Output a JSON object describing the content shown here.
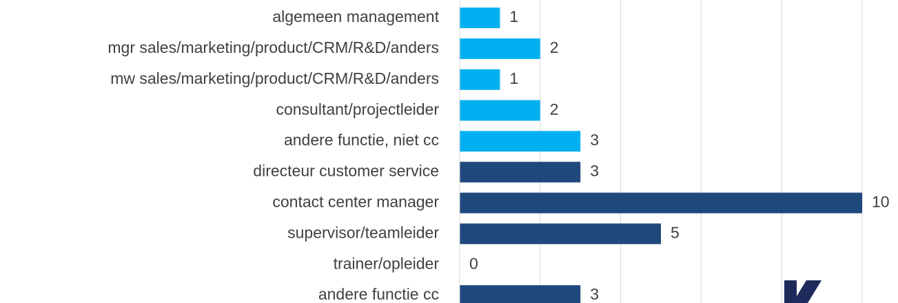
{
  "chart_data": {
    "type": "barh",
    "categories": [
      "algemeen management",
      "mgr sales/marketing/product/CRM/R&D/anders",
      "mw sales/marketing/product/CRM/R&D/anders",
      "consultant/projectleider",
      "andere functie, niet cc",
      "directeur customer service",
      "contact center manager",
      "supervisor/teamleider",
      "trainer/opleider",
      "andere functie cc"
    ],
    "values": [
      1,
      2,
      1,
      2,
      3,
      3,
      10,
      5,
      0,
      3
    ],
    "colors": [
      "#00b0f0",
      "#00b0f0",
      "#00b0f0",
      "#00b0f0",
      "#00b0f0",
      "#1f497d",
      "#1f497d",
      "#1f497d",
      "#1f497d",
      "#1f497d"
    ],
    "xlim": [
      0,
      10
    ],
    "xticks": [
      0,
      2,
      4,
      6,
      8,
      10
    ],
    "grid": true
  }
}
